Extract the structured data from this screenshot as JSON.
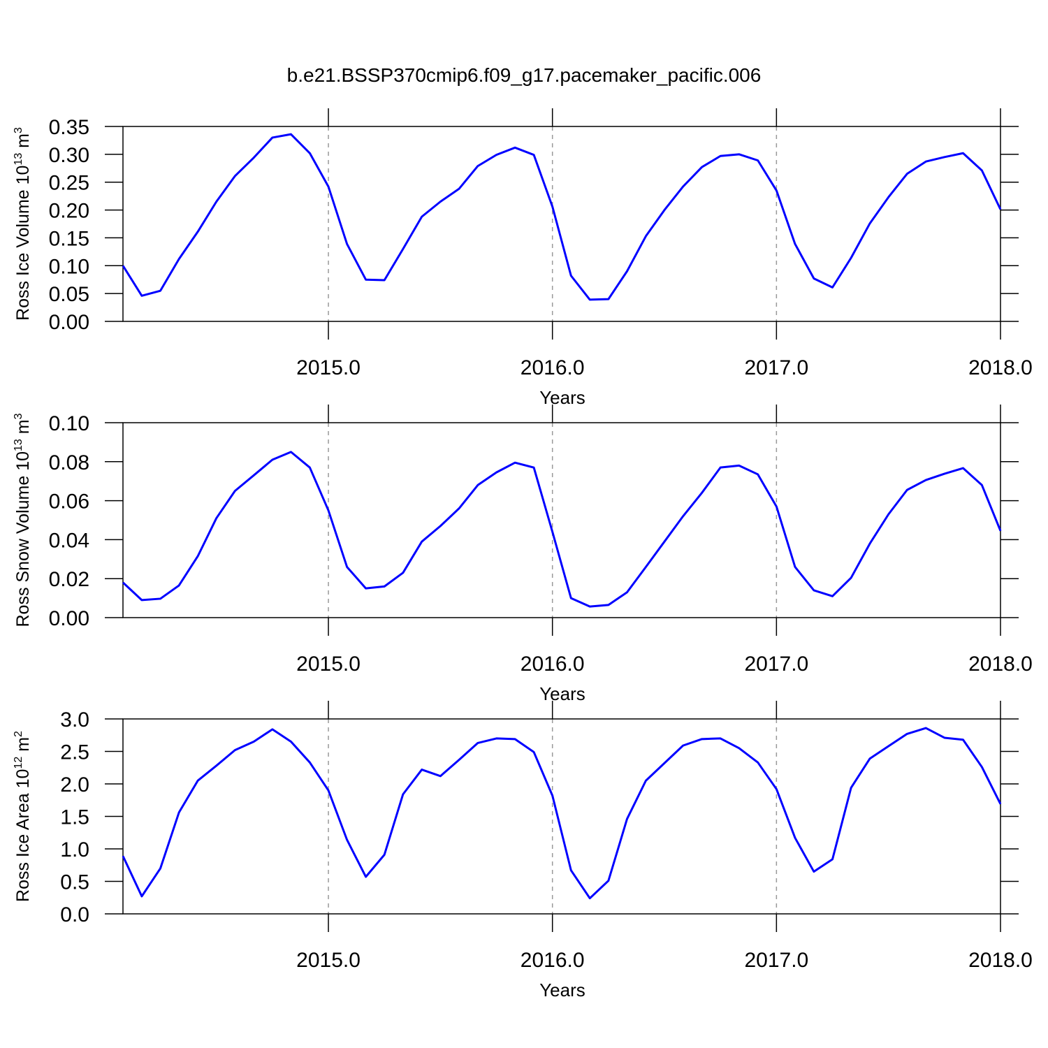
{
  "chart_data": [
    {
      "type": "line",
      "title": "b.e21.BSSP370cmip6.f09_g17.pacemaker_pacific.006",
      "ylabel": [
        "Ross Ice Volume 10",
        "13",
        " m",
        "3"
      ],
      "xlabel": "Years",
      "color": "#0000ff",
      "x": [
        2014.083,
        2014.167,
        2014.25,
        2014.333,
        2014.417,
        2014.5,
        2014.583,
        2014.667,
        2014.75,
        2014.833,
        2014.917,
        2015.0,
        2015.083,
        2015.167,
        2015.25,
        2015.333,
        2015.417,
        2015.5,
        2015.583,
        2015.667,
        2015.75,
        2015.833,
        2015.917,
        2016.0,
        2016.083,
        2016.167,
        2016.25,
        2016.333,
        2016.417,
        2016.5,
        2016.583,
        2016.667,
        2016.75,
        2016.833,
        2016.917,
        2017.0,
        2017.083,
        2017.167,
        2017.25,
        2017.333,
        2017.417,
        2017.5,
        2017.583,
        2017.667,
        2017.75,
        2017.833,
        2017.917,
        2018.0
      ],
      "values": [
        0.1,
        0.046,
        0.055,
        0.112,
        0.161,
        0.215,
        0.261,
        0.294,
        0.33,
        0.336,
        0.302,
        0.242,
        0.139,
        0.075,
        0.074,
        0.13,
        0.188,
        0.215,
        0.238,
        0.279,
        0.299,
        0.312,
        0.299,
        0.206,
        0.082,
        0.039,
        0.04,
        0.09,
        0.153,
        0.2,
        0.242,
        0.277,
        0.297,
        0.3,
        0.289,
        0.235,
        0.139,
        0.077,
        0.061,
        0.114,
        0.176,
        0.223,
        0.265,
        0.287,
        0.295,
        0.302,
        0.271,
        0.201
      ],
      "xlim": [
        2014.083,
        2018.0
      ],
      "xticks": [
        {
          "value": 2015,
          "label": "2015.0"
        },
        {
          "value": 2016,
          "label": "2016.0"
        },
        {
          "value": 2017,
          "label": "2017.0"
        },
        {
          "value": 2018,
          "label": "2018.0"
        }
      ],
      "ylim": [
        0,
        0.35
      ],
      "yticks": [
        {
          "value": 0,
          "label": "0.00"
        },
        {
          "value": 0.05,
          "label": "0.05"
        },
        {
          "value": 0.1,
          "label": "0.10"
        },
        {
          "value": 0.15,
          "label": "0.15"
        },
        {
          "value": 0.2,
          "label": "0.20"
        },
        {
          "value": 0.25,
          "label": "0.25"
        },
        {
          "value": 0.3,
          "label": "0.30"
        },
        {
          "value": 0.35,
          "label": "0.35"
        }
      ],
      "grid": true
    },
    {
      "type": "line",
      "ylabel": [
        "Ross Snow Volume 10",
        "13",
        " m",
        "3"
      ],
      "xlabel": "Years",
      "color": "#0000ff",
      "x": [
        2014.083,
        2014.167,
        2014.25,
        2014.333,
        2014.417,
        2014.5,
        2014.583,
        2014.667,
        2014.75,
        2014.833,
        2014.917,
        2015.0,
        2015.083,
        2015.167,
        2015.25,
        2015.333,
        2015.417,
        2015.5,
        2015.583,
        2015.667,
        2015.75,
        2015.833,
        2015.917,
        2016.0,
        2016.083,
        2016.167,
        2016.25,
        2016.333,
        2016.417,
        2016.5,
        2016.583,
        2016.667,
        2016.75,
        2016.833,
        2016.917,
        2017.0,
        2017.083,
        2017.167,
        2017.25,
        2017.333,
        2017.417,
        2017.5,
        2017.583,
        2017.667,
        2017.75,
        2017.833,
        2017.917,
        2018.0
      ],
      "values": [
        0.018,
        0.009,
        0.0097,
        0.0165,
        0.0315,
        0.051,
        0.065,
        0.073,
        0.081,
        0.085,
        0.077,
        0.055,
        0.026,
        0.015,
        0.016,
        0.023,
        0.039,
        0.047,
        0.056,
        0.068,
        0.0745,
        0.0795,
        0.077,
        0.044,
        0.01,
        0.0057,
        0.0065,
        0.013,
        0.026,
        0.039,
        0.052,
        0.064,
        0.077,
        0.078,
        0.0735,
        0.057,
        0.026,
        0.014,
        0.011,
        0.0204,
        0.038,
        0.053,
        0.0655,
        0.0706,
        0.0738,
        0.0767,
        0.068,
        0.0445
      ],
      "xlim": [
        2014.083,
        2018.0
      ],
      "xticks": [
        {
          "value": 2015,
          "label": "2015.0"
        },
        {
          "value": 2016,
          "label": "2016.0"
        },
        {
          "value": 2017,
          "label": "2017.0"
        },
        {
          "value": 2018,
          "label": "2018.0"
        }
      ],
      "ylim": [
        0,
        0.1
      ],
      "yticks": [
        {
          "value": 0,
          "label": "0.00"
        },
        {
          "value": 0.02,
          "label": "0.02"
        },
        {
          "value": 0.04,
          "label": "0.04"
        },
        {
          "value": 0.06,
          "label": "0.06"
        },
        {
          "value": 0.08,
          "label": "0.08"
        },
        {
          "value": 0.1,
          "label": "0.10"
        }
      ],
      "grid": true
    },
    {
      "type": "line",
      "ylabel": [
        "Ross Ice Area 10",
        "12",
        " m",
        "2"
      ],
      "xlabel": "Years",
      "color": "#0000ff",
      "x": [
        2014.083,
        2014.167,
        2014.25,
        2014.333,
        2014.417,
        2014.5,
        2014.583,
        2014.667,
        2014.75,
        2014.833,
        2014.917,
        2015.0,
        2015.083,
        2015.167,
        2015.25,
        2015.333,
        2015.417,
        2015.5,
        2015.583,
        2015.667,
        2015.75,
        2015.833,
        2015.917,
        2016.0,
        2016.083,
        2016.167,
        2016.25,
        2016.333,
        2016.417,
        2016.5,
        2016.583,
        2016.667,
        2016.75,
        2016.833,
        2016.917,
        2017.0,
        2017.083,
        2017.167,
        2017.25,
        2017.333,
        2017.417,
        2017.5,
        2017.583,
        2017.667,
        2017.75,
        2017.833,
        2017.917,
        2018.0
      ],
      "values": [
        0.89,
        0.27,
        0.7,
        1.56,
        2.05,
        2.28,
        2.52,
        2.65,
        2.84,
        2.65,
        2.33,
        1.9,
        1.14,
        0.57,
        0.91,
        1.84,
        2.22,
        2.12,
        2.37,
        2.63,
        2.7,
        2.69,
        2.49,
        1.82,
        0.67,
        0.24,
        0.51,
        1.46,
        2.05,
        2.32,
        2.59,
        2.69,
        2.7,
        2.55,
        2.33,
        1.92,
        1.17,
        0.65,
        0.84,
        1.94,
        2.39,
        2.58,
        2.77,
        2.86,
        2.71,
        2.68,
        2.26,
        1.69
      ],
      "xlim": [
        2014.083,
        2018.0
      ],
      "xticks": [
        {
          "value": 2015,
          "label": "2015.0"
        },
        {
          "value": 2016,
          "label": "2016.0"
        },
        {
          "value": 2017,
          "label": "2017.0"
        },
        {
          "value": 2018,
          "label": "2018.0"
        }
      ],
      "ylim": [
        0,
        3
      ],
      "yticks": [
        {
          "value": 0,
          "label": "0.0"
        },
        {
          "value": 0.5,
          "label": "0.5"
        },
        {
          "value": 1,
          "label": "1.0"
        },
        {
          "value": 1.5,
          "label": "1.5"
        },
        {
          "value": 2,
          "label": "2.0"
        },
        {
          "value": 2.5,
          "label": "2.5"
        },
        {
          "value": 3,
          "label": "3.0"
        }
      ],
      "grid": true
    }
  ]
}
